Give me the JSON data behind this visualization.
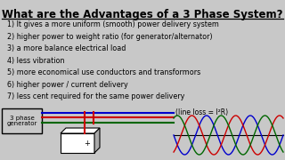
{
  "title": "What are the Advantages of a 3 Phase System?",
  "background_color": "#c8c8c8",
  "text_color": "#000000",
  "title_color": "#000000",
  "items": [
    "1) It gives a more uniform (smooth) power delivery system",
    "2) higher power to weight ratio (for generator/alternator)",
    "3) a more balance electrical load",
    "4) less vibration",
    "5) more economical use conductors and transformors",
    "6) higher power / current delivery",
    "7) less cent required for the same power delivery"
  ],
  "box_label": "3 phase\ngenerator",
  "line_loss_label": "(line loss = I²R)",
  "wave_colors": [
    "#0000cc",
    "#cc0000",
    "#006600"
  ],
  "wire_colors": [
    "#0000cc",
    "#cc0000",
    "#006600"
  ]
}
